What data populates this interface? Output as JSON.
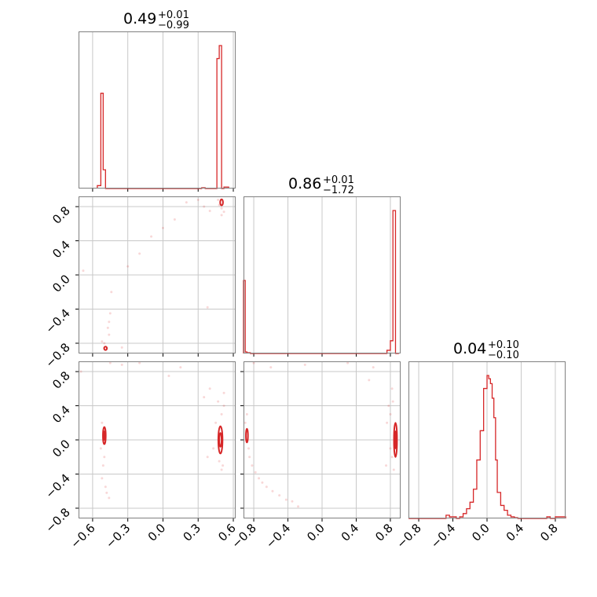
{
  "chart_data": {
    "type": "corner",
    "color": "#d62728",
    "titles": [
      {
        "value": "0.49",
        "plus": "+0.01",
        "minus": "−0.99"
      },
      {
        "value": "0.86",
        "plus": "+0.01",
        "minus": "−1.72"
      },
      {
        "value": "0.04",
        "plus": "+0.10",
        "minus": "−0.10"
      }
    ],
    "axes": {
      "p0": {
        "range": [
          -0.72,
          0.62
        ],
        "ticks": [
          -0.6,
          -0.3,
          0.0,
          0.3,
          0.6
        ],
        "tick_labels": [
          "−0.6",
          "−0.3",
          "0.0",
          "0.3",
          "0.6"
        ]
      },
      "p1": {
        "range": [
          -0.92,
          0.92
        ],
        "ticks": [
          -0.8,
          -0.4,
          0.0,
          0.4,
          0.8
        ],
        "tick_labels": [
          "−0.8",
          "−0.4",
          "0.0",
          "0.4",
          "0.8"
        ]
      },
      "p2": {
        "range": [
          -0.92,
          0.92
        ],
        "ticks": [
          -0.8,
          -0.4,
          0.0,
          0.4,
          0.8
        ],
        "tick_labels": [
          "−0.8",
          "−0.4",
          "0.0",
          "0.4",
          "0.8"
        ]
      }
    },
    "histograms": [
      {
        "param": "p0",
        "edges": [
          -0.56,
          -0.53,
          -0.51,
          -0.49,
          -0.47,
          0.33,
          0.36,
          0.46,
          0.48,
          0.5,
          0.52,
          0.56
        ],
        "counts": [
          0.02,
          0.66,
          0.13,
          0.0,
          0.0,
          0.005,
          0.0,
          0.9,
          0.99,
          0.0,
          0.01
        ]
      },
      {
        "param": "p1",
        "edges": [
          -0.92,
          -0.9,
          -0.88,
          -0.84,
          -0.8,
          0.76,
          0.8,
          0.83,
          0.86,
          0.9
        ],
        "counts": [
          0.46,
          0.01,
          0.005,
          0.0,
          0.0,
          0.02,
          0.08,
          0.9,
          0.0
        ]
      },
      {
        "param": "p2",
        "edges": [
          -0.92,
          -0.48,
          -0.44,
          -0.4,
          -0.36,
          -0.32,
          -0.28,
          -0.24,
          -0.2,
          -0.16,
          -0.12,
          -0.08,
          -0.04,
          0.0,
          0.02,
          0.04,
          0.06,
          0.08,
          0.1,
          0.12,
          0.16,
          0.2,
          0.24,
          0.28,
          0.32,
          0.36,
          0.4,
          0.44,
          0.7,
          0.74,
          0.8,
          0.92
        ],
        "counts": [
          0.0,
          0.02,
          0.01,
          0.01,
          0.0,
          0.01,
          0.03,
          0.06,
          0.1,
          0.18,
          0.36,
          0.54,
          0.8,
          0.88,
          0.86,
          0.83,
          0.74,
          0.62,
          0.36,
          0.16,
          0.08,
          0.05,
          0.02,
          0.01,
          0.005,
          0.0,
          0.0,
          0.0,
          0.01,
          0.0,
          0.01
        ]
      }
    ],
    "contours": [
      {
        "x": "p0",
        "y": "p1",
        "center": [
          0.5,
          0.85
        ],
        "rx": 0.012,
        "ry": 0.035
      },
      {
        "x": "p0",
        "y": "p1",
        "center": [
          -0.49,
          -0.86
        ],
        "rx": 0.012,
        "ry": 0.02
      },
      {
        "x": "p0",
        "y": "p2",
        "center": [
          0.49,
          0.0
        ],
        "rx": 0.018,
        "ry": 0.16
      },
      {
        "x": "p0",
        "y": "p2",
        "center": [
          0.49,
          0.0
        ],
        "rx": 0.01,
        "ry": 0.08
      },
      {
        "x": "p0",
        "y": "p2",
        "center": [
          -0.5,
          0.05
        ],
        "rx": 0.012,
        "ry": 0.1
      },
      {
        "x": "p0",
        "y": "p2",
        "center": [
          -0.5,
          0.05
        ],
        "rx": 0.006,
        "ry": 0.05
      },
      {
        "x": "p1",
        "y": "p2",
        "center": [
          0.86,
          0.0
        ],
        "rx": 0.018,
        "ry": 0.2
      },
      {
        "x": "p1",
        "y": "p2",
        "center": [
          0.86,
          0.0
        ],
        "rx": 0.009,
        "ry": 0.1
      },
      {
        "x": "p1",
        "y": "p2",
        "center": [
          -0.88,
          0.05
        ],
        "rx": 0.012,
        "ry": 0.08
      }
    ],
    "scatter": [
      {
        "x": "p0",
        "y": "p1",
        "points": [
          [
            -0.45,
            -0.45
          ],
          [
            -0.46,
            -0.55
          ],
          [
            -0.47,
            -0.62
          ],
          [
            -0.46,
            -0.7
          ],
          [
            -0.44,
            -0.2
          ],
          [
            -0.3,
            0.1
          ],
          [
            -0.2,
            0.25
          ],
          [
            -0.1,
            0.45
          ],
          [
            0.0,
            0.55
          ],
          [
            0.1,
            0.65
          ],
          [
            -0.68,
            0.05
          ],
          [
            0.48,
            0.82
          ],
          [
            0.5,
            0.78
          ],
          [
            0.52,
            0.74
          ],
          [
            0.47,
            0.88
          ],
          [
            0.35,
            0.8
          ],
          [
            0.4,
            0.75
          ],
          [
            0.5,
            0.7
          ],
          [
            -0.5,
            -0.8
          ],
          [
            -0.52,
            -0.78
          ],
          [
            0.2,
            0.85
          ],
          [
            0.3,
            0.88
          ],
          [
            -0.35,
            -0.85
          ],
          [
            0.38,
            -0.38
          ]
        ]
      },
      {
        "x": "p0",
        "y": "p2",
        "points": [
          [
            -0.5,
            -0.2
          ],
          [
            -0.51,
            -0.3
          ],
          [
            -0.52,
            -0.45
          ],
          [
            -0.49,
            -0.55
          ],
          [
            -0.48,
            -0.62
          ],
          [
            -0.46,
            -0.68
          ],
          [
            -0.52,
            0.2
          ],
          [
            -0.5,
            0.15
          ],
          [
            -0.53,
            -0.1
          ],
          [
            0.5,
            0.3
          ],
          [
            0.52,
            0.4
          ],
          [
            0.48,
            -0.25
          ],
          [
            0.5,
            -0.35
          ],
          [
            0.52,
            0.55
          ],
          [
            0.45,
            0.2
          ],
          [
            0.43,
            -0.1
          ],
          [
            0.47,
            0.45
          ],
          [
            0.51,
            -0.3
          ],
          [
            -0.7,
            0.8
          ],
          [
            -0.45,
            0.9
          ],
          [
            -0.35,
            0.88
          ],
          [
            0.05,
            0.75
          ],
          [
            0.35,
            0.5
          ],
          [
            0.38,
            -0.2
          ],
          [
            0.4,
            0.6
          ],
          [
            -0.2,
            0.9
          ],
          [
            0.15,
            0.85
          ]
        ]
      },
      {
        "x": "p1",
        "y": "p2",
        "points": [
          [
            -0.88,
            0.3
          ],
          [
            -0.86,
            -0.1
          ],
          [
            -0.85,
            -0.2
          ],
          [
            -0.82,
            -0.3
          ],
          [
            -0.78,
            -0.38
          ],
          [
            -0.74,
            -0.45
          ],
          [
            -0.7,
            -0.5
          ],
          [
            -0.65,
            -0.55
          ],
          [
            -0.58,
            -0.6
          ],
          [
            -0.5,
            -0.65
          ],
          [
            -0.42,
            -0.7
          ],
          [
            -0.35,
            -0.72
          ],
          [
            -0.28,
            -0.78
          ],
          [
            -0.9,
            0.2
          ],
          [
            0.78,
            0.4
          ],
          [
            0.8,
            0.3
          ],
          [
            0.82,
            -0.2
          ],
          [
            0.84,
            -0.35
          ],
          [
            0.83,
            0.45
          ],
          [
            0.8,
            -0.1
          ],
          [
            0.76,
            0.2
          ],
          [
            0.75,
            -0.3
          ],
          [
            0.82,
            0.6
          ],
          [
            -0.8,
            0.9
          ],
          [
            -0.6,
            0.85
          ],
          [
            -0.2,
            0.88
          ],
          [
            0.3,
            0.9
          ],
          [
            0.6,
            0.85
          ],
          [
            0.55,
            0.7
          ]
        ]
      }
    ]
  }
}
